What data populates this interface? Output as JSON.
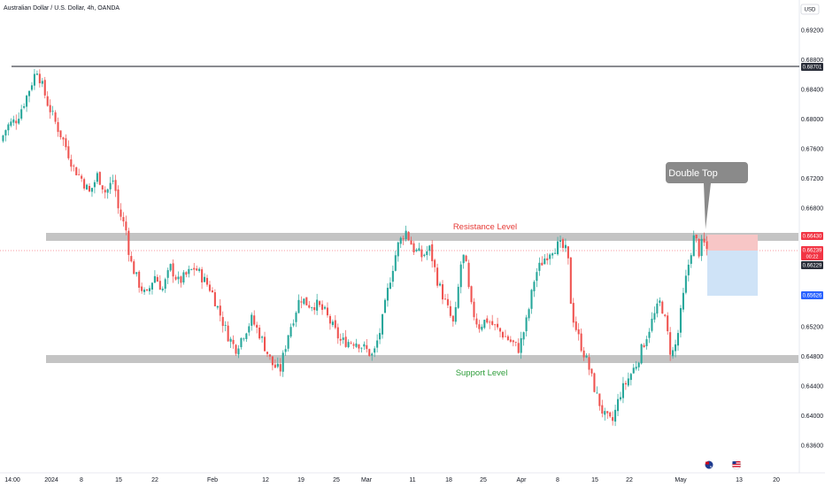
{
  "header": {
    "symbol_title": "Australian Dollar / U.S. Dollar, 4h, OANDA",
    "currency_label": "USD"
  },
  "chart_data": {
    "type": "candlestick",
    "title": "Australian Dollar / U.S. Dollar, 4h, OANDA",
    "ylim": [
      0.634,
      0.6925
    ],
    "y_ticks": [
      "0.69200",
      "0.68800",
      "0.68400",
      "0.68000",
      "0.67600",
      "0.67200",
      "0.66800",
      "0.65200",
      "0.64800",
      "0.64400",
      "0.64000",
      "0.63600"
    ],
    "x_ticks": [
      "14:00",
      "2024",
      "8",
      "15",
      "22",
      "Feb",
      "12",
      "19",
      "25",
      "Mar",
      "11",
      "18",
      "25",
      "Apr",
      "8",
      "15",
      "22",
      "May",
      "13",
      "20"
    ],
    "price_labels": {
      "high_line": "0.68701",
      "resistance": "0.66430",
      "current_price": "0.66239",
      "countdown": "00:22",
      "current_low": "0.66229",
      "target": "0.65626"
    },
    "levels": {
      "high_line": 0.68701,
      "resistance": 0.6643,
      "support": 0.6477,
      "current_price": 0.66239,
      "target": 0.65626
    },
    "annotations": {
      "resistance_label": "Resistance Level",
      "support_label": "Support Level",
      "callout": "Double Top"
    },
    "price_path": [
      [
        0,
        0.677
      ],
      [
        0.008,
        0.679
      ],
      [
        0.02,
        0.68
      ],
      [
        0.032,
        0.683
      ],
      [
        0.045,
        0.6868
      ],
      [
        0.05,
        0.685
      ],
      [
        0.058,
        0.6822
      ],
      [
        0.068,
        0.6795
      ],
      [
        0.08,
        0.6765
      ],
      [
        0.09,
        0.6735
      ],
      [
        0.1,
        0.672
      ],
      [
        0.11,
        0.67
      ],
      [
        0.12,
        0.6725
      ],
      [
        0.13,
        0.67
      ],
      [
        0.14,
        0.672
      ],
      [
        0.145,
        0.668
      ],
      [
        0.155,
        0.665
      ],
      [
        0.16,
        0.661
      ],
      [
        0.17,
        0.658
      ],
      [
        0.18,
        0.656
      ],
      [
        0.19,
        0.659
      ],
      [
        0.2,
        0.657
      ],
      [
        0.21,
        0.66
      ],
      [
        0.22,
        0.658
      ],
      [
        0.24,
        0.66
      ],
      [
        0.26,
        0.657
      ],
      [
        0.27,
        0.654
      ],
      [
        0.28,
        0.651
      ],
      [
        0.29,
        0.649
      ],
      [
        0.3,
        0.651
      ],
      [
        0.31,
        0.653
      ],
      [
        0.32,
        0.651
      ],
      [
        0.335,
        0.647
      ],
      [
        0.345,
        0.646
      ],
      [
        0.355,
        0.651
      ],
      [
        0.37,
        0.656
      ],
      [
        0.38,
        0.655
      ],
      [
        0.39,
        0.655
      ],
      [
        0.4,
        0.654
      ],
      [
        0.42,
        0.65
      ],
      [
        0.44,
        0.65
      ],
      [
        0.46,
        0.648
      ],
      [
        0.47,
        0.652
      ],
      [
        0.48,
        0.658
      ],
      [
        0.49,
        0.6628
      ],
      [
        0.5,
        0.665
      ],
      [
        0.51,
        0.6625
      ],
      [
        0.52,
        0.6615
      ],
      [
        0.53,
        0.6625
      ],
      [
        0.54,
        0.658
      ],
      [
        0.55,
        0.655
      ],
      [
        0.56,
        0.652
      ],
      [
        0.57,
        0.662
      ],
      [
        0.575,
        0.66
      ],
      [
        0.58,
        0.655
      ],
      [
        0.59,
        0.652
      ],
      [
        0.6,
        0.653
      ],
      [
        0.61,
        0.652
      ],
      [
        0.63,
        0.65
      ],
      [
        0.64,
        0.649
      ],
      [
        0.65,
        0.653
      ],
      [
        0.66,
        0.659
      ],
      [
        0.67,
        0.661
      ],
      [
        0.68,
        0.6625
      ],
      [
        0.69,
        0.663
      ],
      [
        0.7,
        0.662
      ],
      [
        0.705,
        0.654
      ],
      [
        0.715,
        0.65
      ],
      [
        0.725,
        0.647
      ],
      [
        0.735,
        0.643
      ],
      [
        0.745,
        0.64
      ],
      [
        0.755,
        0.639
      ],
      [
        0.765,
        0.643
      ],
      [
        0.775,
        0.645
      ],
      [
        0.785,
        0.647
      ],
      [
        0.795,
        0.65
      ],
      [
        0.805,
        0.653
      ],
      [
        0.815,
        0.6555
      ],
      [
        0.822,
        0.652
      ],
      [
        0.828,
        0.648
      ],
      [
        0.835,
        0.65
      ],
      [
        0.84,
        0.654
      ],
      [
        0.847,
        0.659
      ],
      [
        0.852,
        0.662
      ],
      [
        0.857,
        0.6645
      ],
      [
        0.862,
        0.662
      ],
      [
        0.867,
        0.6635
      ],
      [
        0.872,
        0.6624
      ]
    ]
  },
  "colors": {
    "bull": "#26a69a",
    "bear": "#ef5350",
    "band": "#c4c4c4",
    "resistance_text": "#e53935",
    "support_text": "#2e9d3a",
    "callout_fill": "#8a8a8a",
    "label_dark": "#2a2e39",
    "label_red": "#f23645",
    "label_blue": "#2962ff",
    "risk_box": "#f7c6c6",
    "reward_box": "#cfe3f7"
  },
  "icons": {
    "event_1": "australia-flag-icon",
    "event_2": "usa-flag-icon"
  }
}
